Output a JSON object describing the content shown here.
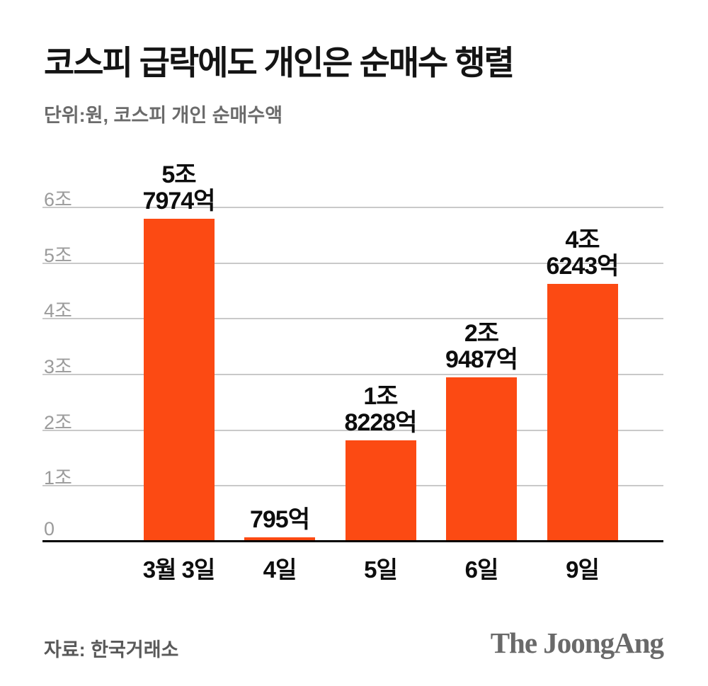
{
  "header": {
    "title": "코스피 급락에도 개인은 순매수 행렬",
    "subtitle": "단위:원, 코스피 개인 순매수액"
  },
  "chart_data": {
    "type": "bar",
    "title": "코스피 급락에도 개인은 순매수 행렬",
    "subtitle_unit": "단위:원, 코스피 개인 순매수액",
    "categories": [
      "3월 3일",
      "4일",
      "5일",
      "6일",
      "9일"
    ],
    "values_trillion_won": [
      5.7974,
      0.0795,
      1.8228,
      2.9487,
      4.6243
    ],
    "bar_value_labels": [
      "5조\n7974억",
      "795억",
      "1조\n8228억",
      "2조\n9487억",
      "4조\n6243억"
    ],
    "y_ticks": [
      "0",
      "1조",
      "2조",
      "3조",
      "4조",
      "5조",
      "6조"
    ],
    "ylim": [
      0,
      6
    ],
    "grid": true,
    "legend": "none",
    "colors": {
      "bar": "#fc4a13",
      "gridline": "#c9c9c9",
      "axis": "#000000",
      "tick_text": "#9b9b9b",
      "label_text": "#0d0d0d"
    }
  },
  "footer": {
    "source": "자료: 한국거래소",
    "logo": "The JoongAng"
  }
}
